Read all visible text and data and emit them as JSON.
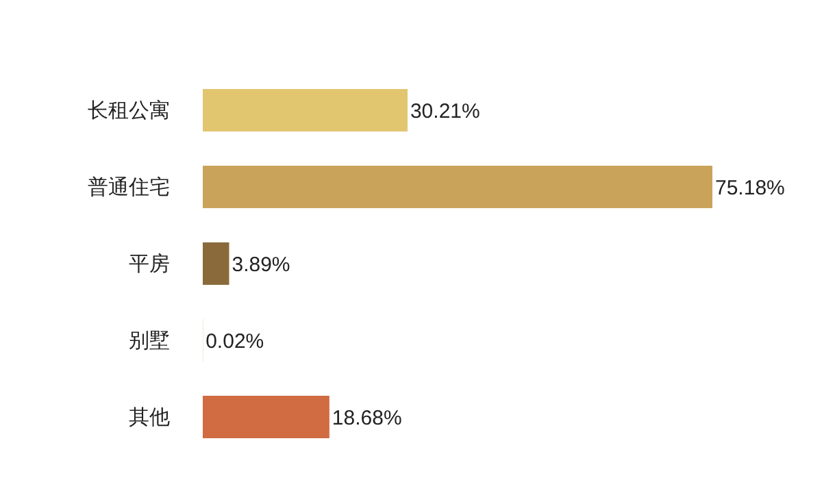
{
  "chart_data": {
    "type": "bar",
    "orientation": "horizontal",
    "categories": [
      "长租公寓",
      "普通住宅",
      "平房",
      "别墅",
      "其他"
    ],
    "values": [
      30.21,
      75.18,
      3.89,
      0.02,
      18.68
    ],
    "colors": [
      "#e2c56f",
      "#caa35b",
      "#8a6a3b",
      "#b08850",
      "#d06b42"
    ],
    "value_labels": [
      "30.21%",
      "75.18%",
      "3.89%",
      "0.02%",
      "18.68%"
    ]
  }
}
